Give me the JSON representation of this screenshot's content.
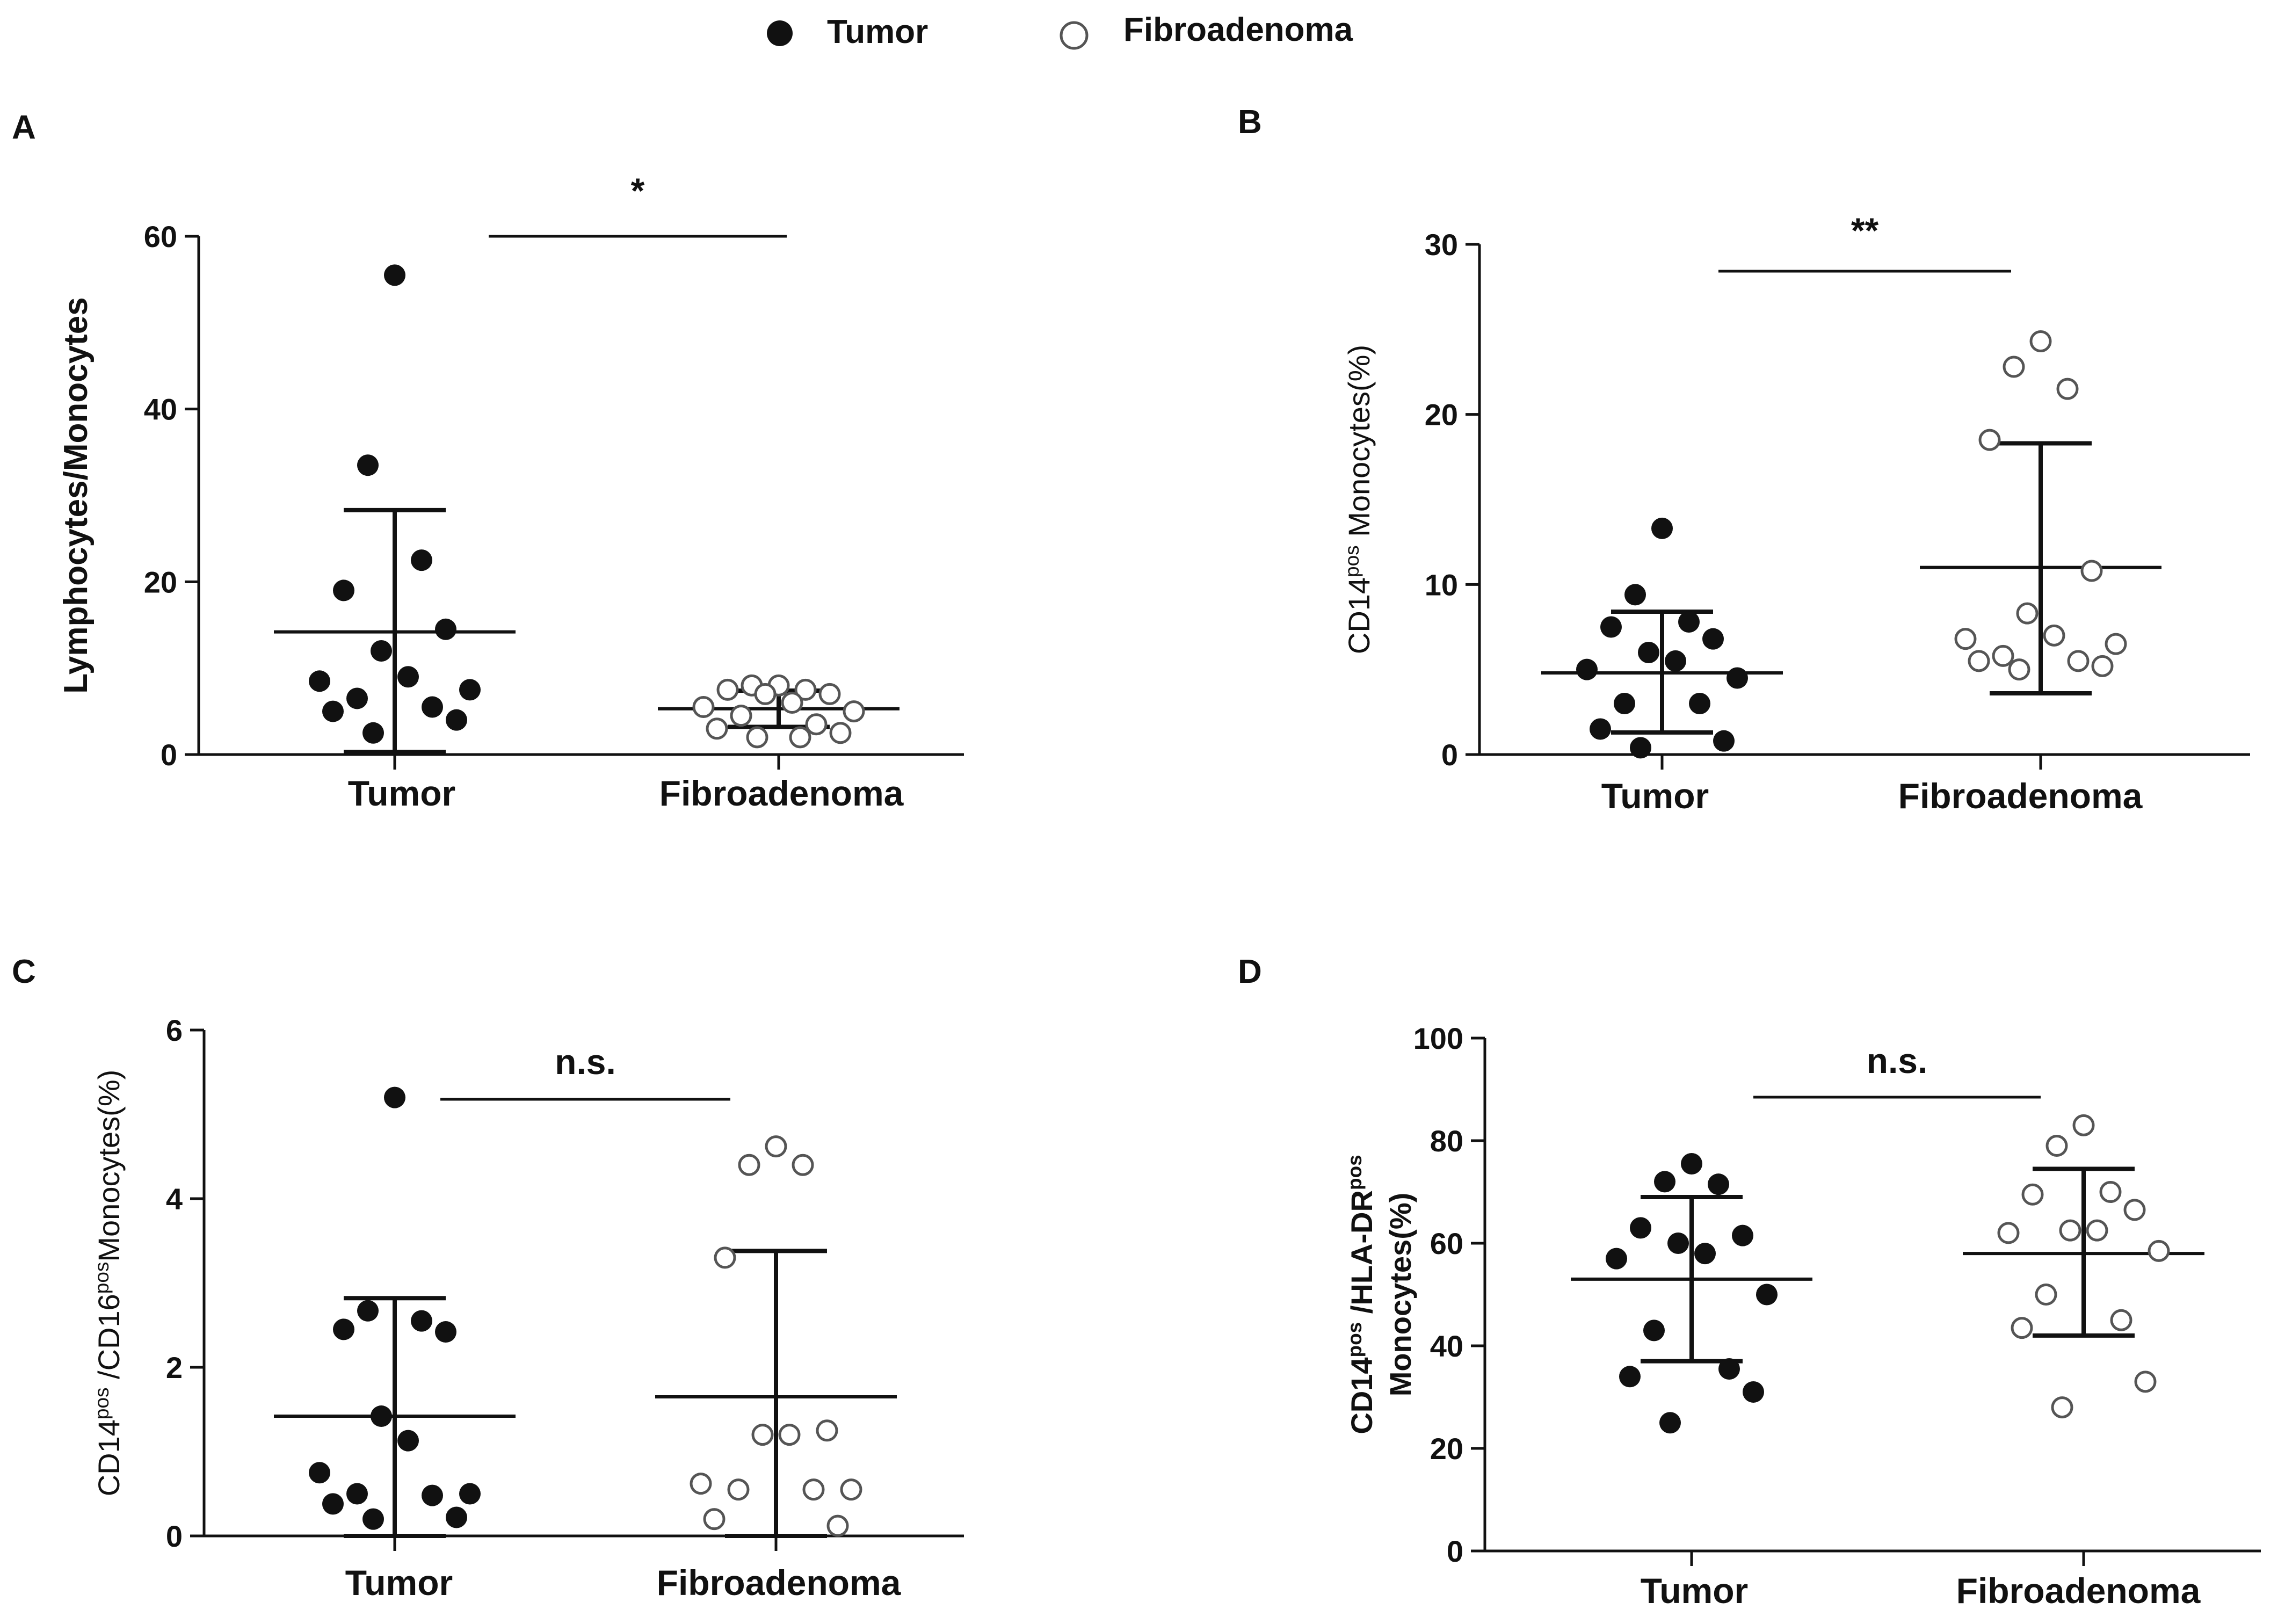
{
  "legend": {
    "tumor": "Tumor",
    "fibroadenoma": "Fibroadenoma"
  },
  "colors": {
    "ink": "#111111",
    "background": "#ffffff"
  },
  "chart_data": [
    {
      "type": "scatter",
      "panel": "A",
      "ylabel": "Lymphocytes/Monocytes",
      "ylabel_parts": [
        {
          "t": "Lymphocytes/Monocytes",
          "sup": false
        }
      ],
      "ylabel_bold": true,
      "ylim": [
        0,
        60
      ],
      "yticks": [
        0,
        20,
        40,
        60
      ],
      "categories": [
        "Tumor",
        "Fibroadenoma"
      ],
      "significance": "*",
      "series": [
        {
          "name": "Tumor",
          "filled": true,
          "values": [
            55.5,
            33.5,
            22.5,
            19,
            14.5,
            12,
            9,
            8.5,
            7.5,
            6.5,
            5.5,
            5,
            4,
            2.5
          ],
          "mean": 14.2,
          "err_low": 0.3,
          "err_high": 28.3
        },
        {
          "name": "Fibroadenoma",
          "filled": false,
          "values": [
            8,
            8,
            7.5,
            7.5,
            7,
            7,
            6,
            5.5,
            5,
            4.5,
            3.5,
            3,
            2.5,
            2,
            2
          ],
          "mean": 5.3,
          "err_low": 3.2,
          "err_high": 7.4
        }
      ]
    },
    {
      "type": "scatter",
      "panel": "B",
      "ylabel": "CD14pos Monocytes(%)",
      "ylabel_parts": [
        {
          "t": "CD14",
          "sup": false
        },
        {
          "t": "pos",
          "sup": true
        },
        {
          "t": " Monocytes(%)",
          "sup": false
        }
      ],
      "ylabel_bold": false,
      "ylim": [
        0,
        30
      ],
      "yticks": [
        0,
        10,
        20,
        30
      ],
      "categories": [
        "Tumor",
        "Fibroadenoma"
      ],
      "significance": "**",
      "series": [
        {
          "name": "Tumor",
          "filled": true,
          "values": [
            13.3,
            9.4,
            7.8,
            7.5,
            6.8,
            6,
            5.5,
            5,
            4.5,
            3,
            3,
            1.5,
            0.8,
            0.4
          ],
          "mean": 4.8,
          "err_low": 1.3,
          "err_high": 8.4
        },
        {
          "name": "Fibroadenoma",
          "filled": false,
          "values": [
            24.3,
            22.8,
            21.5,
            18.5,
            10.8,
            8.3,
            7,
            6.8,
            6.5,
            5.8,
            5.5,
            5.5,
            5.2,
            5
          ],
          "mean": 11,
          "err_low": 3.6,
          "err_high": 18.3
        }
      ]
    },
    {
      "type": "scatter",
      "panel": "C",
      "ylabel": "CD14pos /CD16pos Monocytes(%)",
      "ylabel_parts": [
        {
          "t": "CD14",
          "sup": false
        },
        {
          "t": "pos",
          "sup": true
        },
        {
          "t": " /CD16",
          "sup": false
        },
        {
          "t": "pos",
          "sup": true
        },
        {
          "t": "Monocytes(%)",
          "sup": false
        }
      ],
      "ylabel_bold": false,
      "ylim": [
        0,
        6
      ],
      "yticks": [
        0,
        2,
        4,
        6
      ],
      "categories": [
        "Tumor",
        "Fibroadenoma"
      ],
      "significance": "n.s.",
      "series": [
        {
          "name": "Tumor",
          "filled": true,
          "values": [
            5.2,
            2.67,
            2.55,
            2.45,
            2.42,
            1.42,
            1.13,
            0.75,
            0.5,
            0.5,
            0.48,
            0.38,
            0.22,
            0.2
          ],
          "mean": 1.42,
          "err_low": 0,
          "err_high": 2.82
        },
        {
          "name": "Fibroadenoma",
          "filled": false,
          "values": [
            4.62,
            4.4,
            4.4,
            3.3,
            1.25,
            1.2,
            1.2,
            0.62,
            0.55,
            0.55,
            0.55,
            0.2,
            0.12
          ],
          "mean": 1.65,
          "err_low": 0,
          "err_high": 3.38
        }
      ]
    },
    {
      "type": "scatter",
      "panel": "D",
      "ylabel": "CD14pos /HLA-DRpos Monocytes(%)",
      "ylabel_lines": [
        [
          {
            "t": "CD14",
            "sup": false
          },
          {
            "t": "pos",
            "sup": true
          },
          {
            "t": " /HLA-DR",
            "sup": false
          },
          {
            "t": "pos",
            "sup": true
          }
        ],
        [
          {
            "t": "Monocytes(%)",
            "sup": false
          }
        ]
      ],
      "ylabel_bold": true,
      "ylim": [
        0,
        100
      ],
      "yticks": [
        0,
        20,
        40,
        60,
        80,
        100
      ],
      "categories": [
        "Tumor",
        "Fibroadenoma"
      ],
      "significance": "n.s.",
      "series": [
        {
          "name": "Tumor",
          "filled": true,
          "values": [
            75.5,
            72,
            71.5,
            63,
            61.5,
            60,
            58,
            57,
            50,
            43,
            35.5,
            34,
            31,
            25
          ],
          "mean": 53,
          "err_low": 37,
          "err_high": 69
        },
        {
          "name": "Fibroadenoma",
          "filled": false,
          "values": [
            83,
            79,
            70,
            69.5,
            66.5,
            62.5,
            62.5,
            62,
            58.5,
            50,
            45,
            43.5,
            33,
            28
          ],
          "mean": 58,
          "err_low": 42,
          "err_high": 74.5
        }
      ]
    }
  ]
}
